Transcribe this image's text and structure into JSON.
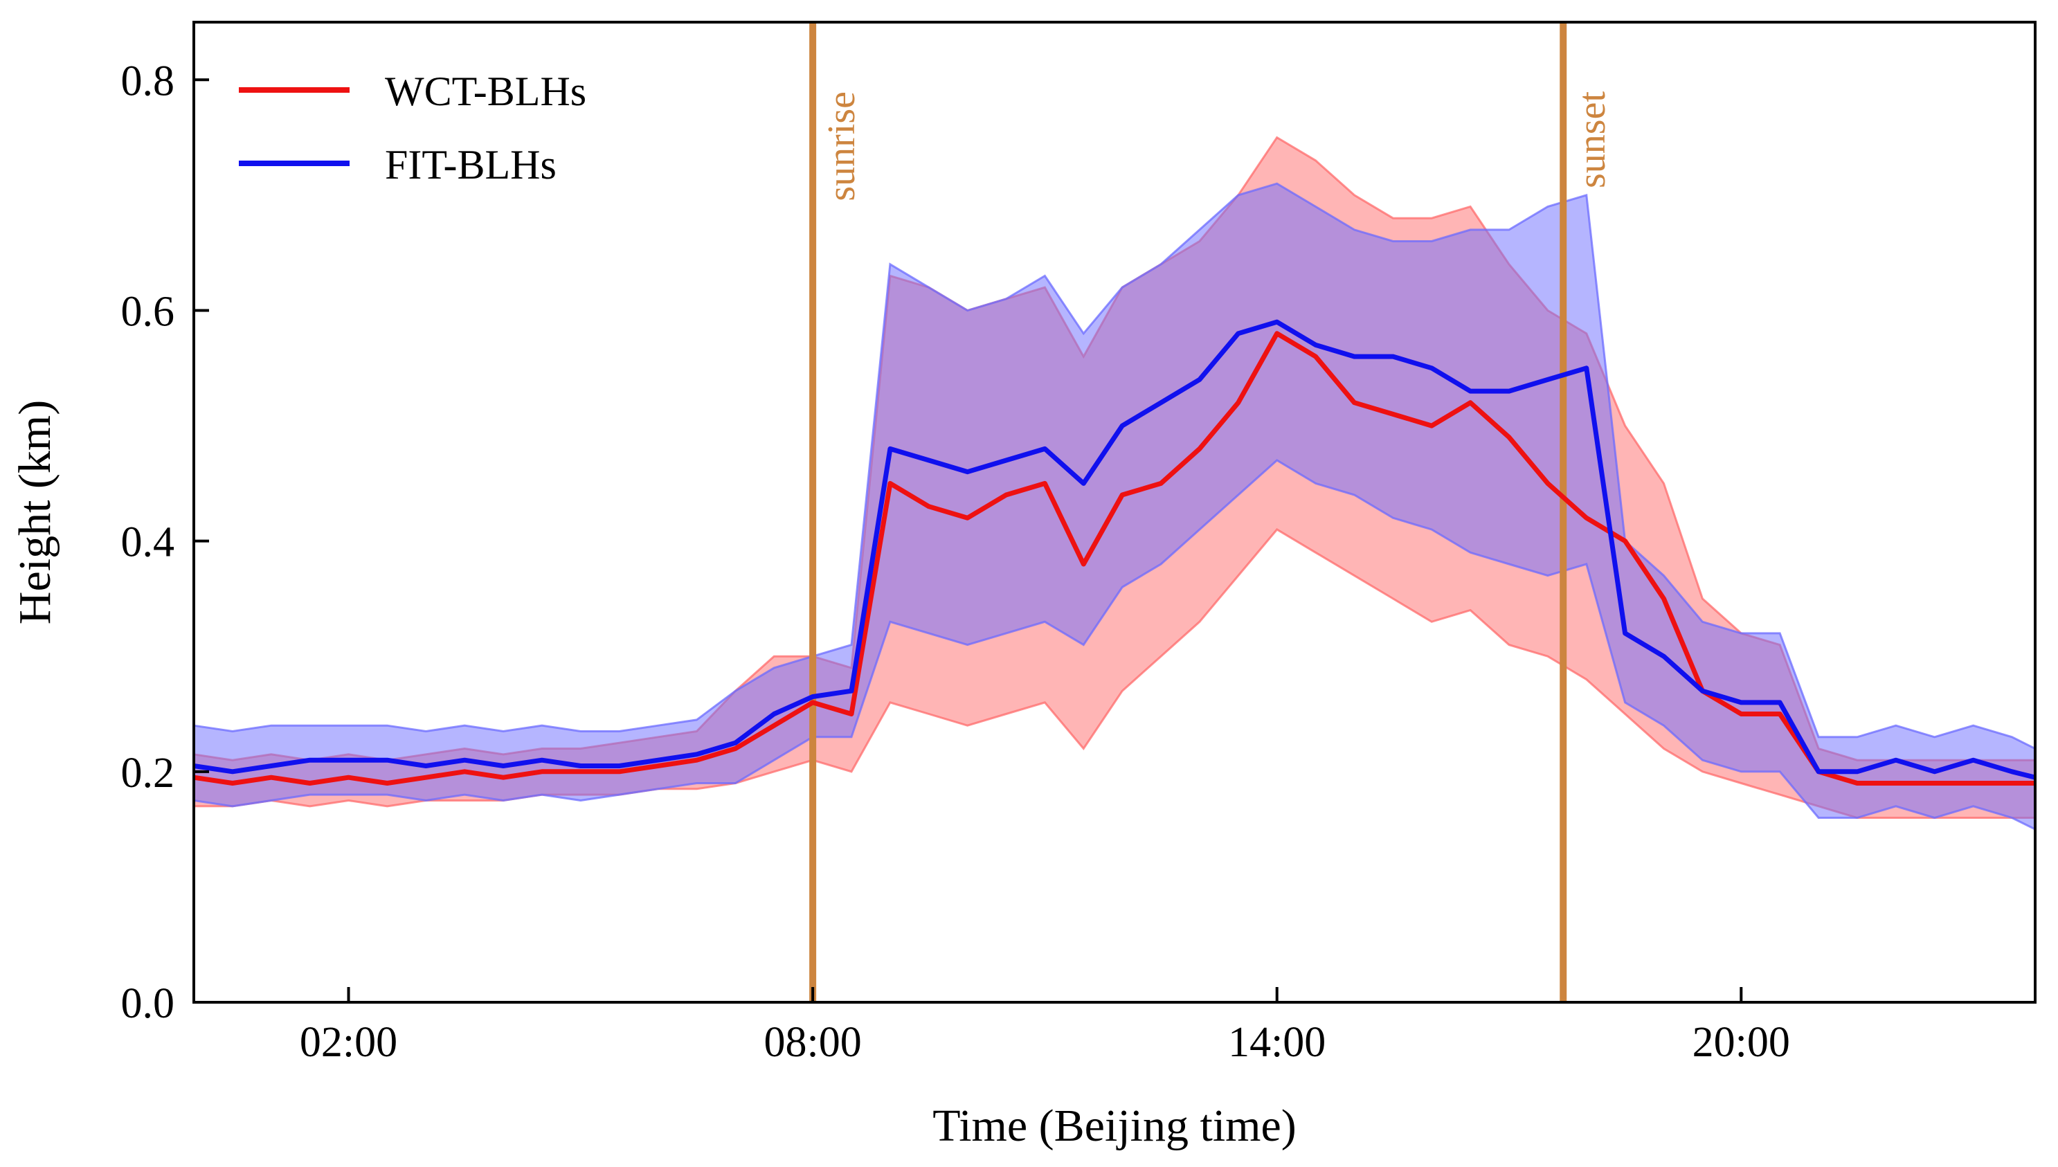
{
  "chart_data": {
    "type": "line",
    "title": "",
    "xlabel": "Time (Beijing time)",
    "ylabel": "Height (km)",
    "xlim": [
      0,
      23.8
    ],
    "ylim": [
      0,
      0.85
    ],
    "x_unit": "hours (Beijing time)",
    "xticks": [
      {
        "value": 2,
        "label": "02:00"
      },
      {
        "value": 8,
        "label": "08:00"
      },
      {
        "value": 14,
        "label": "14:00"
      },
      {
        "value": 20,
        "label": "20:00"
      }
    ],
    "yticks": [
      {
        "value": 0.0,
        "label": "0.0"
      },
      {
        "value": 0.2,
        "label": "0.2"
      },
      {
        "value": 0.4,
        "label": "0.4"
      },
      {
        "value": 0.6,
        "label": "0.6"
      },
      {
        "value": 0.8,
        "label": "0.8"
      }
    ],
    "grid": false,
    "legend_position": "top-left",
    "series": [
      {
        "name": "WCT-BLHs",
        "color": "#ee1111",
        "band_color": "#ff6b6b",
        "x": [
          0,
          0.5,
          1,
          1.5,
          2,
          2.5,
          3,
          3.5,
          4,
          4.5,
          5,
          5.5,
          6,
          6.5,
          7,
          7.5,
          8,
          8.5,
          9,
          9.5,
          10,
          10.5,
          11,
          11.5,
          12,
          12.5,
          13,
          13.5,
          14,
          14.5,
          15,
          15.5,
          16,
          16.5,
          17,
          17.5,
          18,
          18.5,
          19,
          19.5,
          20,
          20.5,
          21,
          21.5,
          22,
          22.5,
          23,
          23.5,
          23.8
        ],
        "mean": [
          0.195,
          0.19,
          0.195,
          0.19,
          0.195,
          0.19,
          0.195,
          0.2,
          0.195,
          0.2,
          0.2,
          0.2,
          0.205,
          0.21,
          0.22,
          0.24,
          0.26,
          0.25,
          0.45,
          0.43,
          0.42,
          0.44,
          0.45,
          0.38,
          0.44,
          0.45,
          0.48,
          0.52,
          0.58,
          0.56,
          0.52,
          0.51,
          0.5,
          0.52,
          0.49,
          0.45,
          0.42,
          0.4,
          0.35,
          0.27,
          0.25,
          0.25,
          0.2,
          0.19,
          0.19,
          0.19,
          0.19,
          0.19,
          0.19
        ],
        "upper": [
          0.215,
          0.21,
          0.215,
          0.21,
          0.215,
          0.21,
          0.215,
          0.22,
          0.215,
          0.22,
          0.22,
          0.225,
          0.23,
          0.235,
          0.27,
          0.3,
          0.3,
          0.29,
          0.63,
          0.62,
          0.6,
          0.61,
          0.62,
          0.56,
          0.62,
          0.64,
          0.66,
          0.7,
          0.75,
          0.73,
          0.7,
          0.68,
          0.68,
          0.69,
          0.64,
          0.6,
          0.58,
          0.5,
          0.45,
          0.35,
          0.32,
          0.31,
          0.22,
          0.21,
          0.21,
          0.21,
          0.21,
          0.21,
          0.21
        ],
        "lower": [
          0.17,
          0.17,
          0.175,
          0.17,
          0.175,
          0.17,
          0.175,
          0.175,
          0.175,
          0.18,
          0.18,
          0.18,
          0.185,
          0.185,
          0.19,
          0.2,
          0.21,
          0.2,
          0.26,
          0.25,
          0.24,
          0.25,
          0.26,
          0.22,
          0.27,
          0.3,
          0.33,
          0.37,
          0.41,
          0.39,
          0.37,
          0.35,
          0.33,
          0.34,
          0.31,
          0.3,
          0.28,
          0.25,
          0.22,
          0.2,
          0.19,
          0.18,
          0.17,
          0.16,
          0.16,
          0.16,
          0.16,
          0.16,
          0.16
        ]
      },
      {
        "name": "FIT-BLHs",
        "color": "#1010ee",
        "band_color": "#6b6bff",
        "x": [
          0,
          0.5,
          1,
          1.5,
          2,
          2.5,
          3,
          3.5,
          4,
          4.5,
          5,
          5.5,
          6,
          6.5,
          7,
          7.5,
          8,
          8.5,
          9,
          9.5,
          10,
          10.5,
          11,
          11.5,
          12,
          12.5,
          13,
          13.5,
          14,
          14.5,
          15,
          15.5,
          16,
          16.5,
          17,
          17.5,
          18,
          18.5,
          19,
          19.5,
          20,
          20.5,
          21,
          21.5,
          22,
          22.5,
          23,
          23.5,
          23.8
        ],
        "mean": [
          0.205,
          0.2,
          0.205,
          0.21,
          0.21,
          0.21,
          0.205,
          0.21,
          0.205,
          0.21,
          0.205,
          0.205,
          0.21,
          0.215,
          0.225,
          0.25,
          0.265,
          0.27,
          0.48,
          0.47,
          0.46,
          0.47,
          0.48,
          0.45,
          0.5,
          0.52,
          0.54,
          0.58,
          0.59,
          0.57,
          0.56,
          0.56,
          0.55,
          0.53,
          0.53,
          0.54,
          0.55,
          0.32,
          0.3,
          0.27,
          0.26,
          0.26,
          0.2,
          0.2,
          0.21,
          0.2,
          0.21,
          0.2,
          0.195
        ],
        "upper": [
          0.24,
          0.235,
          0.24,
          0.24,
          0.24,
          0.24,
          0.235,
          0.24,
          0.235,
          0.24,
          0.235,
          0.235,
          0.24,
          0.245,
          0.27,
          0.29,
          0.3,
          0.31,
          0.64,
          0.62,
          0.6,
          0.61,
          0.63,
          0.58,
          0.62,
          0.64,
          0.67,
          0.7,
          0.71,
          0.69,
          0.67,
          0.66,
          0.66,
          0.67,
          0.67,
          0.69,
          0.7,
          0.4,
          0.37,
          0.33,
          0.32,
          0.32,
          0.23,
          0.23,
          0.24,
          0.23,
          0.24,
          0.23,
          0.22
        ],
        "lower": [
          0.175,
          0.17,
          0.175,
          0.18,
          0.18,
          0.18,
          0.175,
          0.18,
          0.175,
          0.18,
          0.175,
          0.18,
          0.185,
          0.19,
          0.19,
          0.21,
          0.23,
          0.23,
          0.33,
          0.32,
          0.31,
          0.32,
          0.33,
          0.31,
          0.36,
          0.38,
          0.41,
          0.44,
          0.47,
          0.45,
          0.44,
          0.42,
          0.41,
          0.39,
          0.38,
          0.37,
          0.38,
          0.26,
          0.24,
          0.21,
          0.2,
          0.2,
          0.16,
          0.16,
          0.17,
          0.16,
          0.17,
          0.16,
          0.15
        ]
      }
    ],
    "vlines": [
      {
        "x": 8.0,
        "label": "sunrise",
        "color": "#cd853f"
      },
      {
        "x": 17.7,
        "label": "sunset",
        "color": "#cd853f"
      }
    ]
  }
}
